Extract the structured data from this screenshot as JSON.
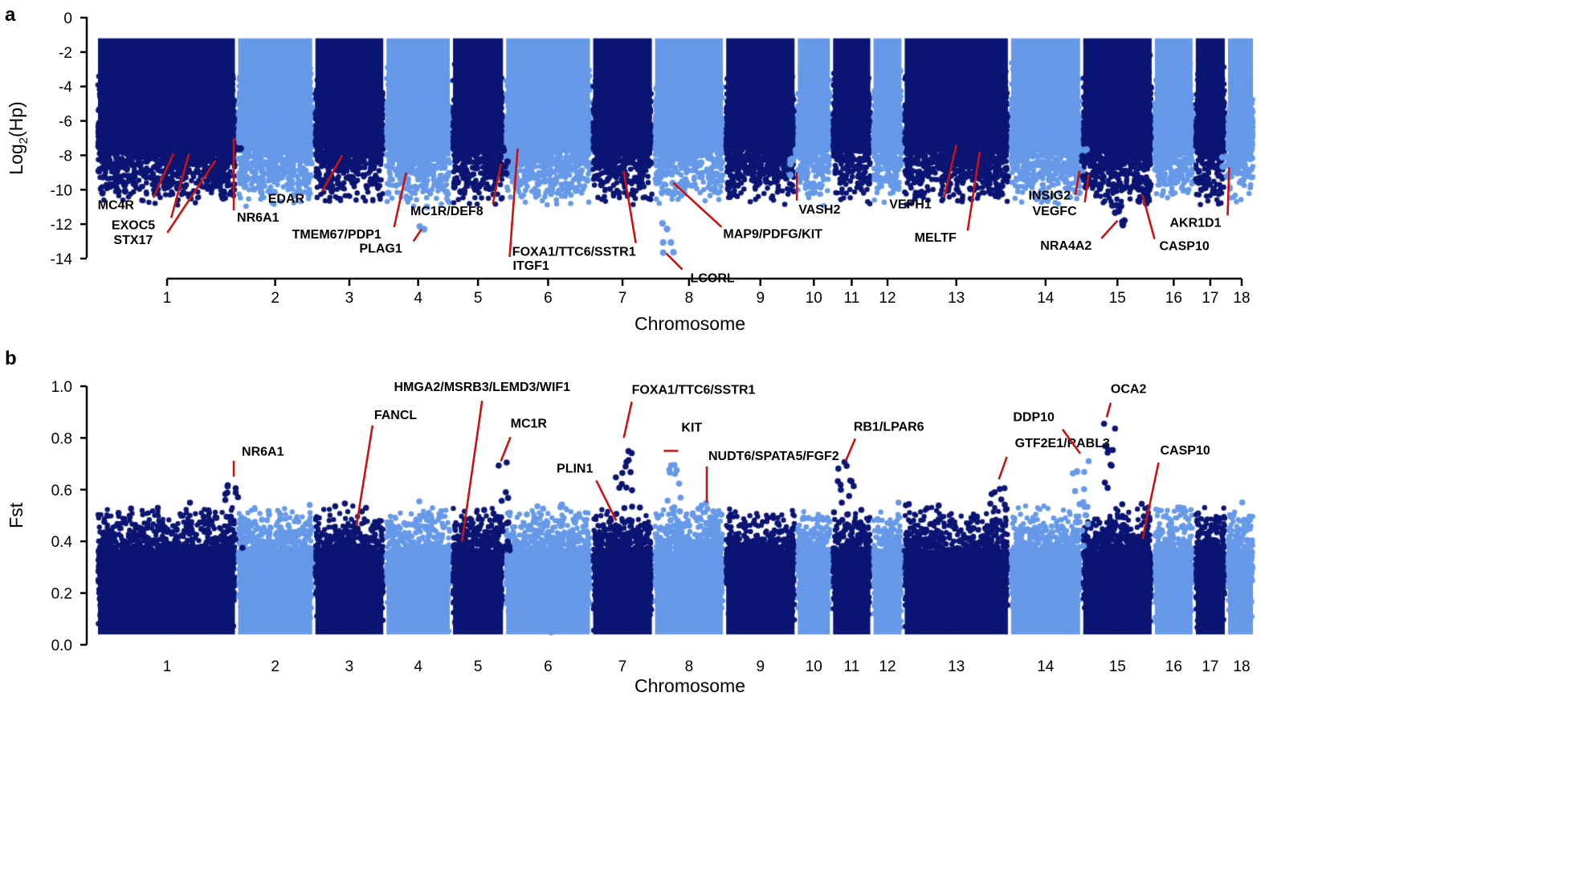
{
  "chart_data": [
    {
      "type": "scatter",
      "panel_label": "a",
      "title": "",
      "xlabel": "Chromosome",
      "ylabel_main": "Log",
      "ylabel_sub": "2",
      "ylabel_tail": "(Hp)",
      "ylim": [
        -14,
        0
      ],
      "yticks": [
        0,
        -2,
        -4,
        -6,
        -8,
        -10,
        -12,
        -14
      ],
      "ytick_labels": [
        "0",
        "-2",
        "-4",
        "-6",
        "-8",
        "-10",
        "-12",
        "-14"
      ],
      "chromosomes": [
        "1",
        "2",
        "3",
        "4",
        "5",
        "6",
        "7",
        "8",
        "9",
        "10",
        "11",
        "12",
        "13",
        "14",
        "15",
        "16",
        "17",
        "18"
      ],
      "chromosome_sizes_mb": [
        274,
        151,
        139,
        130,
        104,
        170,
        121,
        139,
        140,
        69,
        79,
        61,
        208,
        141,
        140,
        80,
        63,
        55
      ],
      "series_colors": [
        "#0b1573",
        "#6699e8"
      ],
      "distribution": {
        "top": -1.3,
        "dense_floor": -7.5,
        "typical_min": -9.5
      },
      "annotations": [
        {
          "gene": "MC4R",
          "chr": "1",
          "pos": 0.55,
          "y": -7.9
        },
        {
          "gene": "EXOC5",
          "chr": "1",
          "pos": 0.66,
          "y": -7.9
        },
        {
          "gene": "STX17",
          "chr": "1",
          "pos": 0.85,
          "y": -8.3
        },
        {
          "gene": "NR6A1",
          "chr": "1",
          "pos": 0.98,
          "y": -7.0
        },
        {
          "gene": "EDAR",
          "chr": "3",
          "pos": 0.4,
          "y": -8.0
        },
        {
          "gene": "TMEM67/PDP1",
          "chr": "4",
          "pos": 0.32,
          "y": -9.0
        },
        {
          "gene": "PLAG1",
          "chr": "4",
          "pos": 0.55,
          "y": -12.3
        },
        {
          "gene": "MC1R/DEF8",
          "chr": "5",
          "pos": 0.93,
          "y": -8.5
        },
        {
          "gene": "ITGF1",
          "chr": "6",
          "pos": 0.15,
          "y": -7.6
        },
        {
          "gene": "FOXA1/TTC6/SSTR1",
          "chr": "7",
          "pos": 0.52,
          "y": -8.9
        },
        {
          "gene": "LCORL",
          "chr": "8",
          "pos": 0.18,
          "y": -13.7
        },
        {
          "gene": "MAP9/PDFG/KIT",
          "chr": "8",
          "pos": 0.28,
          "y": -9.6
        },
        {
          "gene": "VASH2",
          "chr": "10",
          "pos": 0.02,
          "y": -9.0
        },
        {
          "gene": "VEPH1",
          "chr": "13",
          "pos": 0.5,
          "y": -7.4
        },
        {
          "gene": "MELTF",
          "chr": "13",
          "pos": 0.72,
          "y": -7.8
        },
        {
          "gene": "INSIG2",
          "chr": "14",
          "pos": 0.97,
          "y": -8.9
        },
        {
          "gene": "VEGFC",
          "chr": "15",
          "pos": 0.1,
          "y": -9.1
        },
        {
          "gene": "NRA4A2",
          "chr": "15",
          "pos": 0.5,
          "y": -11.8
        },
        {
          "gene": "CASP10",
          "chr": "15",
          "pos": 0.85,
          "y": -10.3
        },
        {
          "gene": "AKR1D1",
          "chr": "18",
          "pos": 0.1,
          "y": -8.7
        }
      ]
    },
    {
      "type": "scatter",
      "panel_label": "b",
      "title": "",
      "xlabel": "Chromosome",
      "ylabel": "Fst",
      "ylim": [
        0.0,
        1.0
      ],
      "yticks": [
        0.0,
        0.2,
        0.4,
        0.6,
        0.8,
        1.0
      ],
      "ytick_labels": [
        "0.0",
        "0.2",
        "0.4",
        "0.6",
        "0.8",
        "1.0"
      ],
      "chromosomes": [
        "1",
        "2",
        "3",
        "4",
        "5",
        "6",
        "7",
        "8",
        "9",
        "10",
        "11",
        "12",
        "13",
        "14",
        "15",
        "16",
        "17",
        "18"
      ],
      "chromosome_sizes_mb": [
        274,
        151,
        139,
        130,
        104,
        170,
        121,
        139,
        140,
        69,
        79,
        61,
        208,
        141,
        140,
        80,
        63,
        55
      ],
      "series_colors": [
        "#0b1573",
        "#6699e8"
      ],
      "distribution": {
        "bottom": 0.02,
        "dense_ceiling": 0.36,
        "typical_max": 0.52
      },
      "annotations": [
        {
          "gene": "NR6A1",
          "chr": "1",
          "pos": 0.98,
          "y": 0.65
        },
        {
          "gene": "FANCL",
          "chr": "3",
          "pos": 0.6,
          "y": 0.46
        },
        {
          "gene": "HMGA2/MSRB3/LEMD3/WIF1",
          "chr": "5",
          "pos": 0.2,
          "y": 0.4
        },
        {
          "gene": "MC1R",
          "chr": "5",
          "pos": 0.93,
          "y": 0.71
        },
        {
          "gene": "PLIN1",
          "chr": "7",
          "pos": 0.4,
          "y": 0.48
        },
        {
          "gene": "FOXA1/TTC6/SSTR1",
          "chr": "7",
          "pos": 0.52,
          "y": 0.8
        },
        {
          "gene": "KIT",
          "chr": "8",
          "pos": 0.28,
          "y": 0.75
        },
        {
          "gene": "NUDT6/SPATA5/FGF2",
          "chr": "8",
          "pos": 0.75,
          "y": 0.55
        },
        {
          "gene": "RB1/LPAR6",
          "chr": "11",
          "pos": 0.35,
          "y": 0.71
        },
        {
          "gene": "GTF2E1/RABL3",
          "chr": "13",
          "pos": 0.9,
          "y": 0.64
        },
        {
          "gene": "DDP10",
          "chr": "14",
          "pos": 0.98,
          "y": 0.74
        },
        {
          "gene": "OCA2",
          "chr": "15",
          "pos": 0.35,
          "y": 0.88
        },
        {
          "gene": "CASP10",
          "chr": "15",
          "pos": 0.85,
          "y": 0.41
        }
      ]
    }
  ]
}
